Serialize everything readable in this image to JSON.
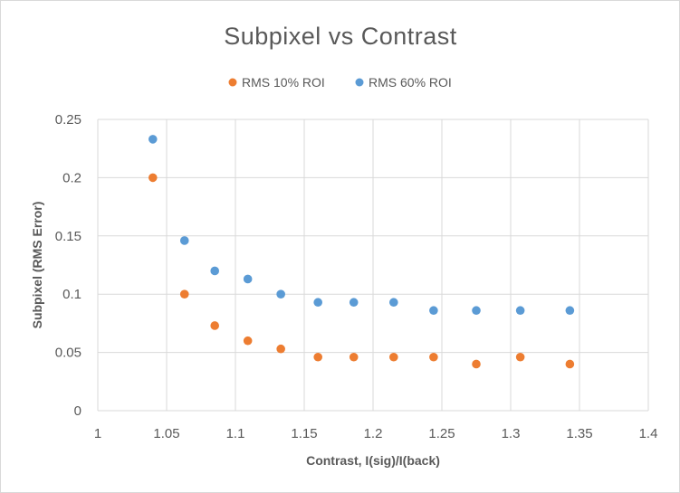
{
  "chart_data": {
    "type": "scatter",
    "title": "Subpixel  vs Contrast",
    "xlabel": "Contrast, I(sig)/I(back)",
    "ylabel": "Subpixel (RMS Error)",
    "xlim": [
      1,
      1.4
    ],
    "ylim": [
      0,
      0.25
    ],
    "xticks": [
      "1",
      "1.05",
      "1.1",
      "1.15",
      "1.2",
      "1.25",
      "1.3",
      "1.35",
      "1.4"
    ],
    "yticks": [
      "0",
      "0.05",
      "0.1",
      "0.15",
      "0.2",
      "0.25"
    ],
    "grid": true,
    "legend_position": "top",
    "series": [
      {
        "name": "RMS 10% ROI",
        "color": "#ED7D31",
        "x": [
          1.04,
          1.063,
          1.085,
          1.109,
          1.133,
          1.16,
          1.186,
          1.215,
          1.244,
          1.275,
          1.307,
          1.343
        ],
        "y": [
          0.2,
          0.1,
          0.073,
          0.06,
          0.053,
          0.046,
          0.046,
          0.046,
          0.046,
          0.04,
          0.046,
          0.04
        ]
      },
      {
        "name": "RMS 60% ROI",
        "color": "#5B9BD5",
        "x": [
          1.04,
          1.063,
          1.085,
          1.109,
          1.133,
          1.16,
          1.186,
          1.215,
          1.244,
          1.275,
          1.307,
          1.343
        ],
        "y": [
          0.233,
          0.146,
          0.12,
          0.113,
          0.1,
          0.093,
          0.093,
          0.093,
          0.086,
          0.086,
          0.086,
          0.086
        ]
      }
    ]
  }
}
